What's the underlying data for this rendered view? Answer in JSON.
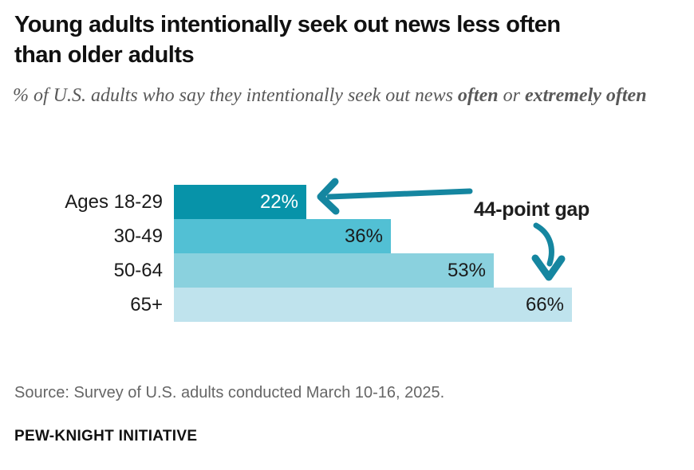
{
  "title": "Young adults intentionally seek out news less often than older adults",
  "subtitle_segments": [
    {
      "text": "% of U.S. adults who say they intentionally seek out news ",
      "bold": false
    },
    {
      "text": "often",
      "bold": true
    },
    {
      "text": " or ",
      "bold": false
    },
    {
      "text": "extremely often",
      "bold": true
    }
  ],
  "chart_data": {
    "type": "bar",
    "orientation": "horizontal",
    "categories": [
      "Ages 18-29",
      "30-49",
      "50-64",
      "65+"
    ],
    "values": [
      22,
      36,
      53,
      66
    ],
    "value_labels": [
      "22%",
      "36%",
      "53%",
      "66%"
    ],
    "bar_colors": [
      "#0793a9",
      "#52c0d4",
      "#8ad1de",
      "#bfe3ed"
    ],
    "value_label_colors": [
      "#ffffff",
      "#1a1a1a",
      "#1a1a1a",
      "#1a1a1a"
    ],
    "xlim": [
      0,
      66
    ],
    "grid": false,
    "legend": "none",
    "annotation": "44-point gap",
    "annotation_arrow_color": "#1586a0"
  },
  "source": "Source: Survey of U.S. adults conducted March 10-16, 2025.",
  "footer": "PEW-KNIGHT INITIATIVE"
}
